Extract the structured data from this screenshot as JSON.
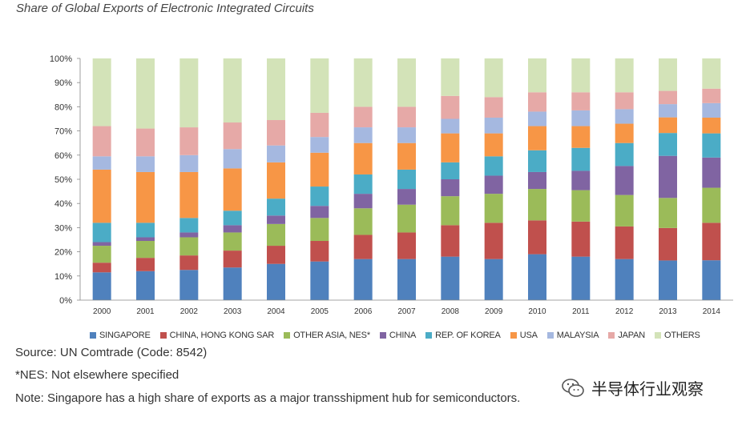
{
  "title": "Share of Global Exports of Electronic Integrated Circuits",
  "source": "Source: UN Comtrade (Code: 8542)",
  "nes_note": "*NES: Not elsewhere specified",
  "note": "Note: Singapore has a high share of exports as a major transshipment hub for semiconductors.",
  "watermark": "半导体行业观察",
  "chart_data": {
    "type": "bar",
    "stacked": true,
    "title": "Share of Global Exports of Electronic Integrated Circuits",
    "xlabel": "",
    "ylabel": "",
    "ylim": [
      0,
      100
    ],
    "yticks": [
      "0%",
      "10%",
      "20%",
      "30%",
      "40%",
      "50%",
      "60%",
      "70%",
      "80%",
      "90%",
      "100%"
    ],
    "categories": [
      "2000",
      "2001",
      "2002",
      "2003",
      "2004",
      "2005",
      "2006",
      "2007",
      "2008",
      "2009",
      "2010",
      "2011",
      "2012",
      "2013",
      "2014"
    ],
    "series": [
      {
        "name": "SINGAPORE",
        "color": "#4f81bd",
        "values": [
          11.5,
          12,
          12.5,
          13.5,
          15,
          16,
          17,
          17,
          18,
          17,
          19,
          18,
          17,
          16.5,
          16.5
        ]
      },
      {
        "name": "CHINA, HONG KONG SAR",
        "color": "#c0504d",
        "values": [
          4,
          5.5,
          6,
          7,
          7.5,
          8.5,
          10,
          11,
          13,
          15,
          14,
          14.5,
          13.5,
          13.5,
          15.5
        ]
      },
      {
        "name": "OTHER ASIA, NES*",
        "color": "#9bbb59",
        "values": [
          7,
          7,
          7.5,
          7.5,
          9,
          9.5,
          11,
          11.5,
          12,
          12,
          13,
          13,
          13,
          12.5,
          14.5
        ]
      },
      {
        "name": "CHINA",
        "color": "#8064a2",
        "values": [
          1.5,
          1.5,
          2,
          3,
          3.5,
          5,
          6,
          6.5,
          7,
          7.5,
          7,
          8,
          12,
          17.5,
          12.5
        ]
      },
      {
        "name": "REP. OF KOREA",
        "color": "#4bacc6",
        "values": [
          8,
          6,
          6,
          6,
          7,
          8,
          8,
          8,
          7,
          8,
          9,
          9.5,
          9.5,
          9.5,
          10
        ]
      },
      {
        "name": "USA",
        "color": "#f79646",
        "values": [
          22,
          21,
          19,
          17.5,
          15,
          14,
          13,
          11,
          12,
          9.5,
          10,
          9,
          8,
          6.5,
          6.5
        ]
      },
      {
        "name": "MALAYSIA",
        "color": "#a5b8e0",
        "values": [
          5.5,
          6.5,
          7,
          8,
          7,
          6.5,
          6.5,
          6.5,
          6,
          6.5,
          6,
          6.5,
          6,
          5.5,
          6
        ]
      },
      {
        "name": "JAPAN",
        "color": "#e6a9a7",
        "values": [
          12.5,
          11.5,
          11.5,
          11,
          10.5,
          10,
          8.5,
          8.5,
          9.5,
          8.5,
          8,
          7.5,
          7,
          5.5,
          6
        ]
      },
      {
        "name": "OTHERS",
        "color": "#d3e3b8",
        "values": [
          28,
          29,
          28.5,
          26.5,
          25.5,
          22.5,
          20,
          20,
          15.5,
          16,
          14,
          14,
          14,
          13.5,
          12.5
        ]
      }
    ]
  }
}
